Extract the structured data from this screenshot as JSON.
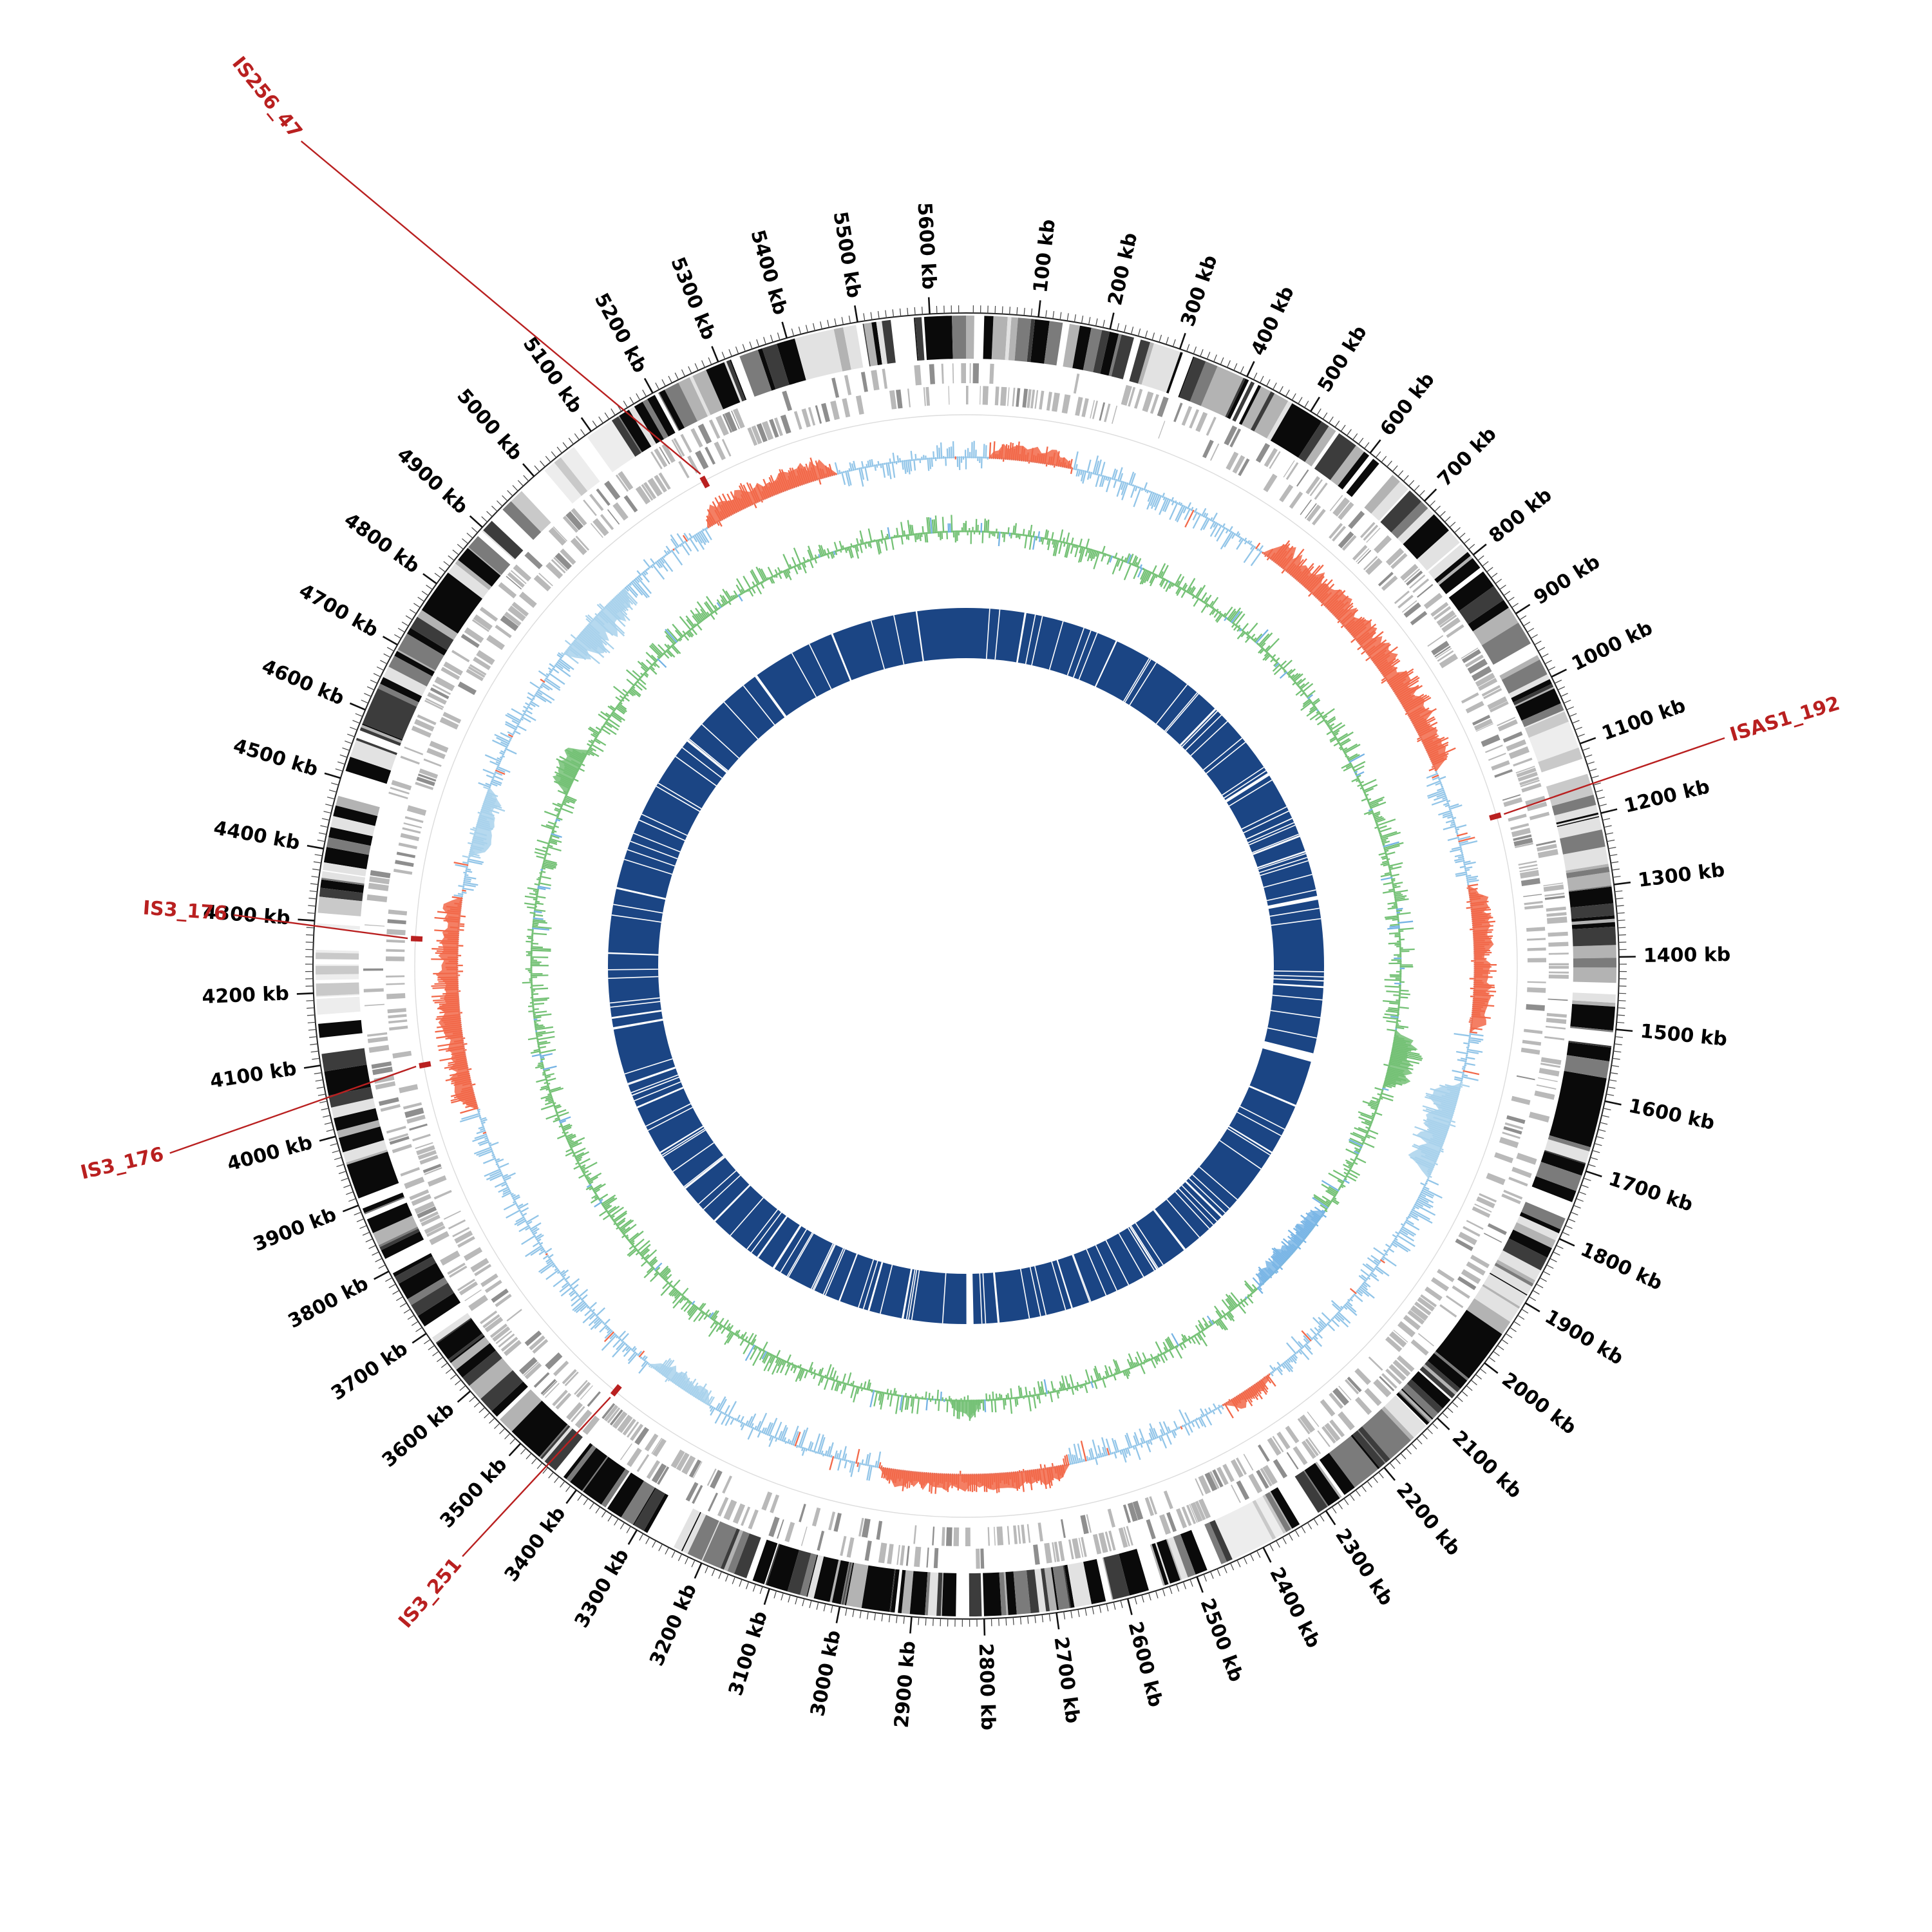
{
  "chart_data": {
    "type": "circular-genome-map",
    "description": "Circos-style circular bacterial genome plot with scale ticks, sequence blocks, gene bars, two histogram tracks and a core-genome ring, annotated with insertion-sequence elements",
    "genome_length_kb": 5650,
    "seed": 1337,
    "axis": {
      "unit": "kb",
      "tick_major_kb": 100,
      "tick_minor_kb": 10,
      "tick_labels": [
        "100 kb",
        "200 kb",
        "300 kb",
        "400 kb",
        "500 kb",
        "600 kb",
        "700 kb",
        "800 kb",
        "900 kb",
        "1000 kb",
        "1100 kb",
        "1200 kb",
        "1300 kb",
        "1400 kb",
        "1500 kb",
        "1600 kb",
        "1700 kb",
        "1800 kb",
        "1900 kb",
        "2000 kb",
        "2100 kb",
        "2200 kb",
        "2300 kb",
        "2400 kb",
        "2500 kb",
        "2600 kb",
        "2700 kb",
        "2800 kb",
        "2900 kb",
        "3000 kb",
        "3100 kb",
        "3200 kb",
        "3300 kb",
        "3400 kb",
        "3500 kb",
        "3600 kb",
        "3700 kb",
        "3800 kb",
        "3900 kb",
        "4000 kb",
        "4100 kb",
        "4200 kb",
        "4300 kb",
        "4400 kb",
        "4500 kb",
        "4600 kb",
        "4700 kb",
        "4800 kb",
        "4900 kb",
        "5000 kb",
        "5100 kb",
        "5200 kb",
        "5300 kb",
        "5400 kb",
        "5500 kb",
        "5600 kb"
      ]
    },
    "annotation_color": "#b92020",
    "annotations": [
      {
        "label": "IS256_47",
        "position_kb": 5205,
        "label_angle_kb": 5040,
        "label_radius": 1655
      },
      {
        "label": "ISAS1_192",
        "position_kb": 1165,
        "label_angle_kb": 1150,
        "label_radius": 1240
      },
      {
        "label": "IS3_176",
        "position_kb": 4282,
        "label_angle_kb": 4300,
        "label_radius": 1150
      },
      {
        "label": "IS3_176",
        "position_kb": 4075,
        "label_angle_kb": 4030,
        "label_radius": 1280
      },
      {
        "label": "IS3_251",
        "position_kb": 3445,
        "label_angle_kb": 3460,
        "label_radius": 1215
      }
    ],
    "rings": [
      {
        "name": "scale",
        "kind": "axis",
        "tick_colors": "#111111"
      },
      {
        "name": "sequence-blocks",
        "kind": "tiles",
        "palette": [
          "#0a0a0a",
          "#3c3c3c",
          "#7b7b7b",
          "#b3b3b3",
          "#e2e2e2",
          "#ffffff"
        ]
      },
      {
        "name": "gene-bars",
        "kind": "tiles",
        "palette": [
          "#b9b9b9",
          "#8e8e8e"
        ]
      },
      {
        "name": "skew-histogram",
        "kind": "histogram",
        "positive_color": "#f26849",
        "negative_color": "#a9d2ec",
        "fine_color": "#92c5e8"
      },
      {
        "name": "coverage-histogram",
        "kind": "histogram",
        "main_color": "#74c175",
        "alt_color": "#74b2e4"
      },
      {
        "name": "core-genome",
        "kind": "band",
        "color": "#1b4584",
        "gap_color": "#ffffff"
      }
    ],
    "rings_colors": {
      "skew_pos": "#f26849",
      "skew_neg": "#a9d2ec",
      "skew_fine": "#92c5e8",
      "cov_main": "#74c175",
      "cov_alt": "#74b2e4",
      "core": "#1b4584"
    },
    "skew_regions": [
      {
        "start": 40,
        "end": 190,
        "v": 0.45
      },
      {
        "start": 560,
        "end": 1060,
        "v": 0.7
      },
      {
        "start": 1270,
        "end": 1530,
        "v": 0.55
      },
      {
        "start": 1620,
        "end": 1800,
        "v": -0.8
      },
      {
        "start": 2250,
        "end": 2350,
        "v": 0.4
      },
      {
        "start": 2640,
        "end": 2980,
        "v": 0.5
      },
      {
        "start": 3300,
        "end": 3430,
        "v": -0.45
      },
      {
        "start": 3980,
        "end": 4360,
        "v": 0.65
      },
      {
        "start": 4430,
        "end": 4560,
        "v": -0.55
      },
      {
        "start": 4830,
        "end": 4990,
        "v": -0.85
      },
      {
        "start": 5170,
        "end": 5420,
        "v": 0.6
      }
    ],
    "coverage_regions": [
      {
        "start": 1545,
        "end": 1665,
        "v": 0.85
      },
      {
        "start": 1950,
        "end": 2160,
        "v": -0.5,
        "color": "#7ab6e6"
      },
      {
        "start": 2790,
        "end": 2860,
        "v": 0.6
      },
      {
        "start": 4600,
        "end": 4705,
        "v": 0.75
      }
    ],
    "blocks_light_regions": [
      {
        "start": 1040,
        "end": 1170
      },
      {
        "start": 2360,
        "end": 2430
      },
      {
        "start": 4140,
        "end": 4330
      },
      {
        "start": 4950,
        "end": 5130
      }
    ],
    "core_gaps": [
      {
        "pos": 150,
        "w": 5
      },
      {
        "pos": 390,
        "w": 4
      },
      {
        "pos": 700,
        "w": 3
      },
      {
        "pos": 905,
        "w": 7
      },
      {
        "pos": 1010,
        "w": 3
      },
      {
        "pos": 1120,
        "w": 4
      },
      {
        "pos": 1240,
        "w": 10
      },
      {
        "pos": 1450,
        "w": 3
      },
      {
        "pos": 1645,
        "w": 22
      },
      {
        "pos": 1905,
        "w": 4
      },
      {
        "pos": 2110,
        "w": 5
      },
      {
        "pos": 2320,
        "w": 4
      },
      {
        "pos": 2555,
        "w": 3
      },
      {
        "pos": 2815,
        "w": 18
      },
      {
        "pos": 2985,
        "w": 5
      },
      {
        "pos": 3150,
        "w": 4
      },
      {
        "pos": 3335,
        "w": 6
      },
      {
        "pos": 3525,
        "w": 5
      },
      {
        "pos": 3745,
        "w": 4
      },
      {
        "pos": 3905,
        "w": 3
      },
      {
        "pos": 4080,
        "w": 6
      },
      {
        "pos": 4270,
        "w": 4
      },
      {
        "pos": 4435,
        "w": 5
      },
      {
        "pos": 4615,
        "w": 3
      },
      {
        "pos": 4850,
        "w": 6
      },
      {
        "pos": 5085,
        "w": 4
      },
      {
        "pos": 5305,
        "w": 5
      },
      {
        "pos": 5525,
        "w": 4
      }
    ]
  }
}
